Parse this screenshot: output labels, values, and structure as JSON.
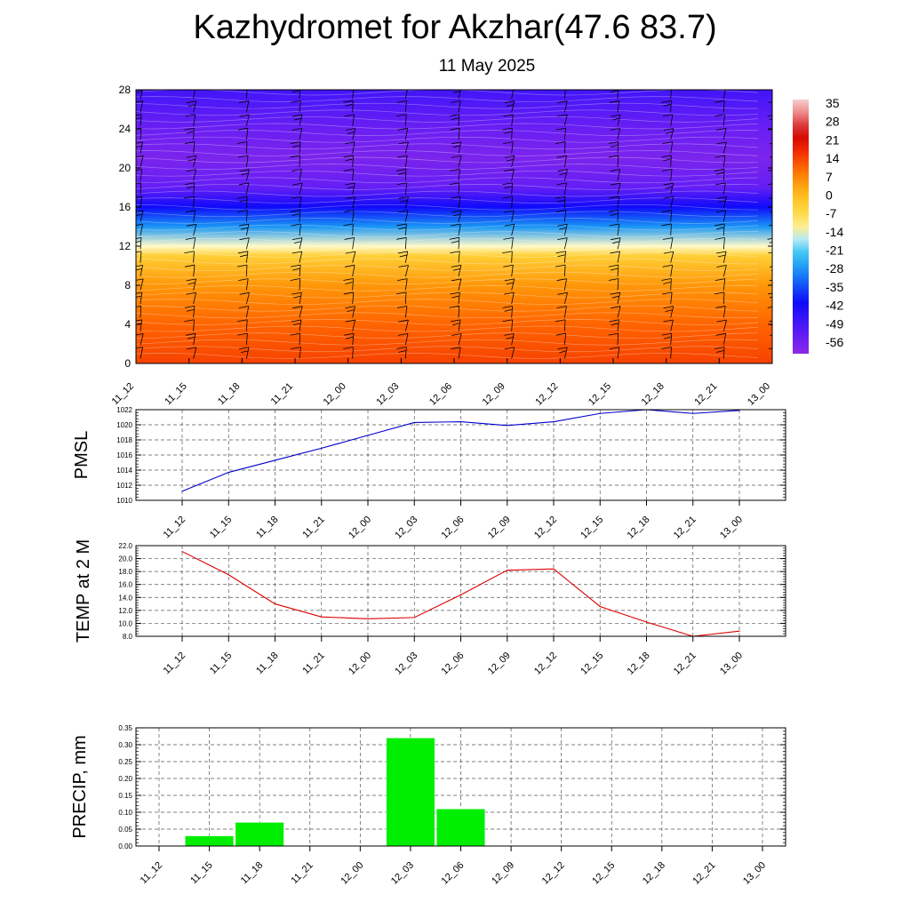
{
  "page": {
    "title": "Kazhydromet for Akzhar(47.6 83.7)",
    "subtitle": "11 May 2025"
  },
  "colors": {
    "pmsl_line": "#0000cc",
    "temp_line": "#dd0000",
    "precip_bar": "#00ee00",
    "grid": "#555555"
  },
  "chart_data": [
    {
      "type": "heatmap",
      "title": "",
      "xlabel": "",
      "ylabel": "",
      "x_categories": [
        "11_12",
        "11_15",
        "11_18",
        "11_21",
        "12_00",
        "12_03",
        "12_06",
        "12_09",
        "12_12",
        "12_15",
        "12_18",
        "12_21",
        "13_00"
      ],
      "y_ticks": [
        0,
        4,
        8,
        12,
        16,
        20,
        24,
        28
      ],
      "ylim": [
        0,
        28
      ],
      "colorbar_labels": [
        "35",
        "28",
        "21",
        "14",
        "7",
        "0",
        "-7",
        "-14",
        "-21",
        "-28",
        "-35",
        "-42",
        "-49",
        "-56"
      ],
      "colorbar_range": [
        -63,
        42
      ],
      "layers": [
        {
          "level": 0,
          "value": 18
        },
        {
          "level": 4,
          "value": 14
        },
        {
          "level": 8,
          "value": 8
        },
        {
          "level": 11,
          "value": -2
        },
        {
          "level": 12,
          "value": -14
        },
        {
          "level": 14,
          "value": -28
        },
        {
          "level": 16,
          "value": -42
        },
        {
          "level": 18,
          "value": -56
        },
        {
          "level": 21,
          "value": -60
        },
        {
          "level": 24,
          "value": -57
        },
        {
          "level": 28,
          "value": -50
        }
      ],
      "wind_barbs": true
    },
    {
      "type": "line",
      "ylabel": "PMSL",
      "categories": [
        "11_12",
        "11_15",
        "11_18",
        "11_21",
        "12_00",
        "12_03",
        "12_06",
        "12_09",
        "12_12",
        "12_15",
        "12_18",
        "12_21",
        "13_00"
      ],
      "values": [
        1011.2,
        1013.7,
        1015.3,
        1016.9,
        1018.6,
        1020.3,
        1020.4,
        1019.9,
        1020.4,
        1021.5,
        1022.0,
        1021.5,
        1021.9
      ],
      "ylim": [
        1010,
        1022
      ],
      "yticks": [
        "1010",
        "1012",
        "1014",
        "1016",
        "1018",
        "1020",
        "1022"
      ],
      "grid": true
    },
    {
      "type": "line",
      "ylabel": "TEMP at 2 M",
      "categories": [
        "11_12",
        "11_15",
        "11_18",
        "11_21",
        "12_00",
        "12_03",
        "12_06",
        "12_09",
        "12_12",
        "12_15",
        "12_18",
        "12_21",
        "13_00"
      ],
      "values": [
        21.1,
        17.5,
        13.0,
        11.0,
        10.7,
        10.9,
        14.4,
        18.2,
        18.4,
        12.6,
        10.2,
        8.0,
        8.8
      ],
      "ylim": [
        8,
        22
      ],
      "yticks": [
        "8.0",
        "10.0",
        "12.0",
        "14.0",
        "16.0",
        "18.0",
        "20.0",
        "22.0"
      ],
      "grid": true
    },
    {
      "type": "bar",
      "ylabel": "PRECIP, mm",
      "categories": [
        "11_12",
        "11_15",
        "11_18",
        "11_21",
        "12_00",
        "12_03",
        "12_06",
        "12_09",
        "12_12",
        "12_15",
        "12_18",
        "12_21",
        "13_00"
      ],
      "values": [
        0,
        0.03,
        0.07,
        0,
        0,
        0.32,
        0.11,
        0,
        0,
        0,
        0,
        0,
        0
      ],
      "ylim": [
        0,
        0.35
      ],
      "yticks": [
        "0.00",
        "0.05",
        "0.10",
        "0.15",
        "0.20",
        "0.25",
        "0.30",
        "0.35"
      ],
      "grid": true
    }
  ]
}
